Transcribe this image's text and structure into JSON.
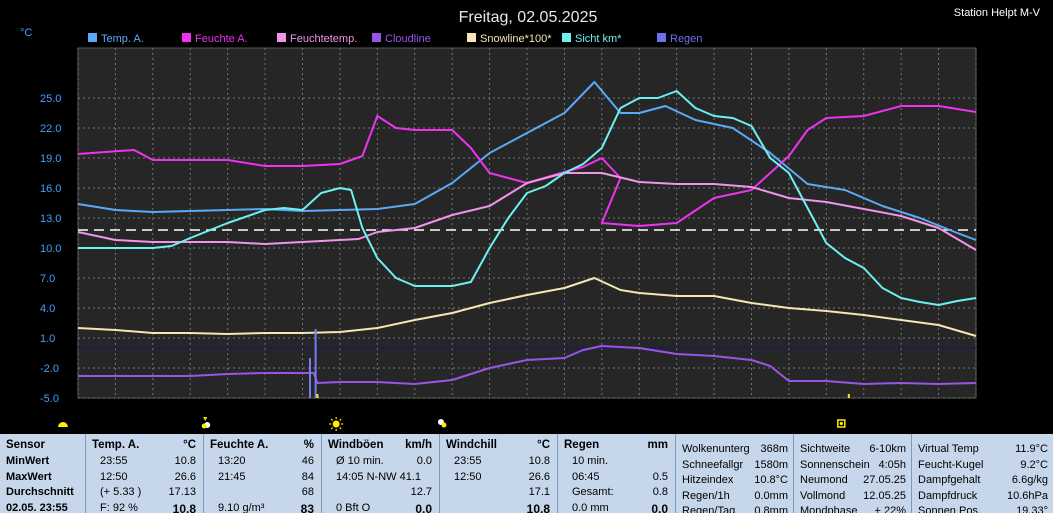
{
  "header": {
    "title": "Freitag, 02.05.2025",
    "station": "Station Helpt M-V"
  },
  "chart_data": {
    "type": "line",
    "title": "Freitag, 02.05.2025",
    "ylabel": "°C",
    "ylim": [
      -5,
      30
    ],
    "yticks": [
      "25.0",
      "22.0",
      "19.0",
      "16.0",
      "13.0",
      "10.0",
      "7.0",
      "4.0",
      "1.0",
      "-2.0",
      "-5.0"
    ],
    "x_range_hours": [
      0,
      24
    ],
    "grid": true,
    "legend_position": "top",
    "series": [
      {
        "name": "Temp. A.",
        "color": "#5aaaf5",
        "points": [
          [
            0,
            14.4
          ],
          [
            1,
            13.8
          ],
          [
            2,
            13.6
          ],
          [
            3,
            13.7
          ],
          [
            4,
            13.8
          ],
          [
            5,
            13.9
          ],
          [
            6,
            13.7
          ],
          [
            7,
            13.8
          ],
          [
            8,
            13.9
          ],
          [
            9,
            14.4
          ],
          [
            10,
            16.5
          ],
          [
            11,
            19.5
          ],
          [
            12,
            21.5
          ],
          [
            13,
            23.5
          ],
          [
            13.8,
            26.6
          ],
          [
            14.5,
            23.5
          ],
          [
            15,
            23.5
          ],
          [
            15.7,
            24.2
          ],
          [
            16.5,
            22.8
          ],
          [
            17.5,
            22
          ],
          [
            18.5,
            19.5
          ],
          [
            19.5,
            16.4
          ],
          [
            20.5,
            15.8
          ],
          [
            21.5,
            14.2
          ],
          [
            22.5,
            13
          ],
          [
            23.5,
            11.5
          ],
          [
            24,
            10.8
          ]
        ]
      },
      {
        "name": "Feuchte A.",
        "color": "#ee33ee",
        "points": [
          [
            0,
            19.4
          ],
          [
            1.5,
            19.8
          ],
          [
            2,
            18.8
          ],
          [
            3,
            18.8
          ],
          [
            4,
            18.8
          ],
          [
            5,
            18.2
          ],
          [
            6,
            18.2
          ],
          [
            7,
            18.4
          ],
          [
            7.6,
            19.2
          ],
          [
            8,
            23.2
          ],
          [
            8.5,
            22
          ],
          [
            9,
            21.8
          ],
          [
            10,
            21.8
          ],
          [
            10.5,
            20
          ],
          [
            11,
            17.5
          ],
          [
            12,
            16.5
          ],
          [
            13,
            17.6
          ],
          [
            13.5,
            18.1
          ],
          [
            14,
            19
          ],
          [
            14.5,
            17
          ],
          [
            14,
            12.5
          ],
          [
            15,
            12.2
          ],
          [
            16,
            12.5
          ],
          [
            17,
            15
          ],
          [
            18,
            15.8
          ],
          [
            18.5,
            17.5
          ],
          [
            19,
            19.2
          ],
          [
            19.5,
            21.8
          ],
          [
            20,
            23
          ],
          [
            21,
            23.2
          ],
          [
            22,
            24.2
          ],
          [
            23,
            24.2
          ],
          [
            24,
            23.6
          ]
        ]
      },
      {
        "name": "Feuchtetemp.",
        "color": "#f095e8",
        "points": [
          [
            0,
            11.6
          ],
          [
            1,
            10.8
          ],
          [
            2,
            10.6
          ],
          [
            3,
            10.6
          ],
          [
            4,
            10.6
          ],
          [
            5,
            10.4
          ],
          [
            6,
            10.6
          ],
          [
            7,
            10.8
          ],
          [
            7.5,
            10.9
          ],
          [
            8,
            11.6
          ],
          [
            9,
            12
          ],
          [
            10,
            13.3
          ],
          [
            11,
            14.2
          ],
          [
            12,
            16.5
          ],
          [
            13,
            17.5
          ],
          [
            14,
            17.5
          ],
          [
            15,
            16.6
          ],
          [
            16,
            16.4
          ],
          [
            17,
            16.4
          ],
          [
            18,
            16.1
          ],
          [
            19,
            15
          ],
          [
            20,
            14.6
          ],
          [
            21,
            13.9
          ],
          [
            22,
            13.2
          ],
          [
            23,
            12
          ],
          [
            24,
            9.8
          ]
        ]
      },
      {
        "name": "Cloudline",
        "color": "#9a55e6",
        "points": [
          [
            0,
            -2.8
          ],
          [
            1,
            -2.8
          ],
          [
            2,
            -2.8
          ],
          [
            3,
            -2.8
          ],
          [
            4,
            -2.6
          ],
          [
            5,
            -2.5
          ],
          [
            6,
            -2.5
          ],
          [
            6.3,
            -2.5
          ],
          [
            6.4,
            -3.5
          ],
          [
            7,
            -3.4
          ],
          [
            8,
            -3.4
          ],
          [
            9,
            -3.6
          ],
          [
            10,
            -3.2
          ],
          [
            11,
            -2
          ],
          [
            12,
            -1.2
          ],
          [
            13,
            -1
          ],
          [
            13.5,
            -0.2
          ],
          [
            14,
            0.2
          ],
          [
            15,
            0
          ],
          [
            16,
            -0.6
          ],
          [
            17,
            -0.8
          ],
          [
            18,
            -1.2
          ],
          [
            18.5,
            -1.8
          ],
          [
            19,
            -3.3
          ],
          [
            20,
            -3.3
          ],
          [
            21,
            -3.6
          ],
          [
            22,
            -3.5
          ],
          [
            23,
            -3.6
          ],
          [
            24,
            -3.5
          ]
        ]
      },
      {
        "name": "Snowline*100*",
        "color": "#f5e6b4",
        "points": [
          [
            0,
            2
          ],
          [
            1,
            1.8
          ],
          [
            2,
            1.5
          ],
          [
            3,
            1.5
          ],
          [
            4,
            1.4
          ],
          [
            5,
            1.5
          ],
          [
            6,
            1.5
          ],
          [
            7,
            1.6
          ],
          [
            8,
            2
          ],
          [
            9,
            2.8
          ],
          [
            10,
            3.5
          ],
          [
            11,
            4.5
          ],
          [
            12,
            5.3
          ],
          [
            13,
            6
          ],
          [
            13.8,
            7
          ],
          [
            14.5,
            5.8
          ],
          [
            15,
            5.5
          ],
          [
            16,
            5.2
          ],
          [
            17,
            5.2
          ],
          [
            18,
            4.5
          ],
          [
            19,
            4
          ],
          [
            20,
            3.7
          ],
          [
            21,
            3.3
          ],
          [
            22,
            2.8
          ],
          [
            23,
            2.3
          ],
          [
            24,
            1.2
          ]
        ]
      },
      {
        "name": "Sicht km*",
        "color": "#6ef0f0",
        "points": [
          [
            0,
            10
          ],
          [
            1,
            10
          ],
          [
            2,
            10
          ],
          [
            2.5,
            10.2
          ],
          [
            3,
            11
          ],
          [
            4,
            12.5
          ],
          [
            5,
            13.8
          ],
          [
            5.5,
            14
          ],
          [
            6,
            13.8
          ],
          [
            6.5,
            15.5
          ],
          [
            7,
            16
          ],
          [
            7.3,
            15.8
          ],
          [
            7.6,
            12
          ],
          [
            8,
            9
          ],
          [
            8.5,
            7
          ],
          [
            9,
            6.2
          ],
          [
            9.5,
            6.2
          ],
          [
            10,
            6.2
          ],
          [
            10.5,
            6.6
          ],
          [
            11,
            10
          ],
          [
            11.5,
            13
          ],
          [
            12,
            15.5
          ],
          [
            12.5,
            16.2
          ],
          [
            13,
            17.5
          ],
          [
            13.5,
            18.4
          ],
          [
            14,
            20
          ],
          [
            14.5,
            24
          ],
          [
            15,
            25
          ],
          [
            15.5,
            25
          ],
          [
            16,
            25.7
          ],
          [
            16.5,
            24
          ],
          [
            17,
            23.2
          ],
          [
            17.5,
            23
          ],
          [
            18,
            22.2
          ],
          [
            18.5,
            19
          ],
          [
            19,
            17.5
          ],
          [
            19.5,
            14
          ],
          [
            20,
            10.5
          ],
          [
            20.5,
            9
          ],
          [
            21,
            8
          ],
          [
            21.5,
            6
          ],
          [
            22,
            5
          ],
          [
            22.5,
            4.6
          ],
          [
            23,
            4.3
          ],
          [
            23.5,
            4.7
          ],
          [
            24,
            5
          ]
        ]
      },
      {
        "name": "Regen",
        "color": "#7070ee",
        "points": []
      }
    ],
    "threshold_lines": [
      {
        "y": 11.8,
        "color": "#ffffff",
        "style": "dashed"
      },
      {
        "y": 0,
        "color": "#0000cc",
        "style": "dotted"
      }
    ],
    "rain_bars": [
      {
        "x": 6.35,
        "y_top": 1.9
      },
      {
        "x": 6.2,
        "y_top": -1
      }
    ],
    "marker_rows": [
      {
        "x": 0.4,
        "icon": "sunrise-icon",
        "color": "#ffee00"
      },
      {
        "x": 3.4,
        "icon": "moonrise-icon",
        "color": "#ffee00"
      },
      {
        "x": 6.9,
        "icon": "sun-max-icon",
        "color": "#ffee00"
      },
      {
        "x": 9.7,
        "icon": "moonset-icon",
        "color": "#ffee00"
      },
      {
        "x": 20.4,
        "icon": "sunset-icon",
        "color": "#ffee00"
      }
    ],
    "ticks_bottom": [
      6.4,
      20.6
    ]
  },
  "stats": {
    "sensor": {
      "header": "Sensor",
      "rows": [
        "MinWert",
        "MaxWert",
        "Durchschnitt",
        "02.05. 23:55"
      ]
    },
    "temp": {
      "header": "Temp. A.",
      "unit": "°C",
      "rows": [
        [
          "23:55",
          "10.8"
        ],
        [
          "12:50",
          "26.6"
        ],
        [
          "(+ 5.33 )",
          "17.13"
        ],
        [
          "F: 92 %",
          "10.8"
        ]
      ]
    },
    "feuchte": {
      "header": "Feuchte A.",
      "unit": "%",
      "rows": [
        [
          "13:20",
          "46"
        ],
        [
          "21:45",
          "84"
        ],
        [
          "",
          "68"
        ],
        [
          "9.10 g/m³",
          "83"
        ]
      ]
    },
    "wind": {
      "header": "Windböen",
      "unit": "km/h",
      "rows": [
        [
          "Ø 10 min.",
          "0.0"
        ],
        [
          "14:05   N-NW 41.1",
          ""
        ],
        [
          "",
          "12.7"
        ],
        [
          "0 Bft  O",
          "0.0"
        ]
      ]
    },
    "chill": {
      "header": "Windchill",
      "unit": "°C",
      "rows": [
        [
          "23:55",
          "10.8"
        ],
        [
          "12:50",
          "26.6"
        ],
        [
          "",
          "17.1"
        ],
        [
          "",
          "10.8"
        ]
      ]
    },
    "regen": {
      "header": "Regen",
      "unit": "mm",
      "rows": [
        [
          "10 min.",
          ""
        ],
        [
          "06:45",
          "0.5"
        ],
        [
          "Gesamt:",
          "0.8"
        ],
        [
          "0.0 mm",
          "0.0"
        ]
      ]
    },
    "wolken": {
      "rows": [
        [
          "Wolkenunterg",
          "368m"
        ],
        [
          "Schneefallgr",
          "1580m"
        ],
        [
          "Hitzeindex",
          "10.8°C"
        ],
        [
          "Regen/1h",
          "0.0mm"
        ],
        [
          "Regen/Tag",
          "0.8mm"
        ]
      ]
    },
    "sicht": {
      "rows": [
        [
          "Sichtweite",
          "6-10km"
        ],
        [
          "Sonnenschein",
          "4:05h"
        ],
        [
          "Neumond",
          "27.05.25"
        ],
        [
          "Vollmond",
          "12.05.25"
        ],
        [
          "Mondphase",
          "+ 22%"
        ]
      ]
    },
    "virtual": {
      "rows": [
        [
          "Virtual Temp",
          "11.9°C"
        ],
        [
          "Feucht-Kugel",
          "9.2°C"
        ],
        [
          "Dampfgehalt",
          "6.6g/kg"
        ],
        [
          "Dampfdruck",
          "10.6hPa"
        ],
        [
          "Sonnen Pos.",
          "19.33°"
        ]
      ]
    }
  }
}
